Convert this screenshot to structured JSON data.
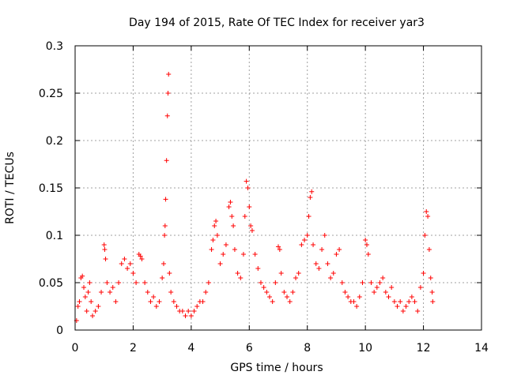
{
  "chart_data": {
    "type": "scatter",
    "title": "Day 194 of 2015, Rate Of TEC Index for receiver yar3",
    "xlabel": "GPS time / hours",
    "ylabel": "ROTI / TECUs",
    "xlim": [
      0,
      14
    ],
    "ylim": [
      0,
      0.3
    ],
    "x_ticks": [
      0,
      2,
      4,
      6,
      8,
      10,
      12,
      14
    ],
    "y_ticks": [
      0,
      0.05,
      0.1,
      0.15,
      0.2,
      0.25,
      0.3
    ],
    "x_tick_labels": [
      "0",
      "2",
      "4",
      "6",
      "8",
      "10",
      "12",
      "14"
    ],
    "y_tick_labels": [
      "0",
      "0.05",
      "0.1",
      "0.15",
      "0.2",
      "0.25",
      "0.3"
    ],
    "grid": true,
    "marker": "+",
    "series": [
      {
        "name": "ROTI",
        "color": "#ff0000",
        "points": [
          [
            0.05,
            0.01
          ],
          [
            0.1,
            0.025
          ],
          [
            0.15,
            0.03
          ],
          [
            0.2,
            0.055
          ],
          [
            0.25,
            0.057
          ],
          [
            0.3,
            0.045
          ],
          [
            0.35,
            0.035
          ],
          [
            0.4,
            0.02
          ],
          [
            0.45,
            0.04
          ],
          [
            0.5,
            0.05
          ],
          [
            0.55,
            0.03
          ],
          [
            0.6,
            0.015
          ],
          [
            0.7,
            0.02
          ],
          [
            0.8,
            0.025
          ],
          [
            0.9,
            0.04
          ],
          [
            1.0,
            0.09
          ],
          [
            1.02,
            0.085
          ],
          [
            1.05,
            0.075
          ],
          [
            1.1,
            0.05
          ],
          [
            1.2,
            0.04
          ],
          [
            1.3,
            0.045
          ],
          [
            1.4,
            0.03
          ],
          [
            1.5,
            0.05
          ],
          [
            1.6,
            0.07
          ],
          [
            1.7,
            0.075
          ],
          [
            1.8,
            0.065
          ],
          [
            1.9,
            0.07
          ],
          [
            2.0,
            0.06
          ],
          [
            2.1,
            0.05
          ],
          [
            2.2,
            0.08
          ],
          [
            2.25,
            0.078
          ],
          [
            2.3,
            0.075
          ],
          [
            2.4,
            0.05
          ],
          [
            2.5,
            0.04
          ],
          [
            2.6,
            0.03
          ],
          [
            2.7,
            0.035
          ],
          [
            2.8,
            0.025
          ],
          [
            2.9,
            0.03
          ],
          [
            3.0,
            0.055
          ],
          [
            3.05,
            0.07
          ],
          [
            3.08,
            0.1
          ],
          [
            3.1,
            0.11
          ],
          [
            3.12,
            0.138
          ],
          [
            3.15,
            0.179
          ],
          [
            3.18,
            0.226
          ],
          [
            3.2,
            0.25
          ],
          [
            3.22,
            0.27
          ],
          [
            3.25,
            0.06
          ],
          [
            3.3,
            0.04
          ],
          [
            3.4,
            0.03
          ],
          [
            3.5,
            0.025
          ],
          [
            3.6,
            0.02
          ],
          [
            3.7,
            0.02
          ],
          [
            3.8,
            0.015
          ],
          [
            3.9,
            0.02
          ],
          [
            4.0,
            0.015
          ],
          [
            4.1,
            0.02
          ],
          [
            4.2,
            0.025
          ],
          [
            4.3,
            0.03
          ],
          [
            4.4,
            0.03
          ],
          [
            4.5,
            0.04
          ],
          [
            4.6,
            0.05
          ],
          [
            4.7,
            0.085
          ],
          [
            4.75,
            0.095
          ],
          [
            4.8,
            0.11
          ],
          [
            4.85,
            0.115
          ],
          [
            4.9,
            0.1
          ],
          [
            5.0,
            0.07
          ],
          [
            5.1,
            0.08
          ],
          [
            5.2,
            0.09
          ],
          [
            5.3,
            0.13
          ],
          [
            5.35,
            0.135
          ],
          [
            5.4,
            0.12
          ],
          [
            5.45,
            0.11
          ],
          [
            5.5,
            0.085
          ],
          [
            5.6,
            0.06
          ],
          [
            5.7,
            0.055
          ],
          [
            5.8,
            0.08
          ],
          [
            5.85,
            0.12
          ],
          [
            5.9,
            0.157
          ],
          [
            5.95,
            0.15
          ],
          [
            6.0,
            0.13
          ],
          [
            6.05,
            0.11
          ],
          [
            6.1,
            0.105
          ],
          [
            6.2,
            0.08
          ],
          [
            6.3,
            0.065
          ],
          [
            6.4,
            0.05
          ],
          [
            6.5,
            0.045
          ],
          [
            6.6,
            0.04
          ],
          [
            6.7,
            0.035
          ],
          [
            6.8,
            0.03
          ],
          [
            6.9,
            0.05
          ],
          [
            7.0,
            0.088
          ],
          [
            7.05,
            0.085
          ],
          [
            7.1,
            0.06
          ],
          [
            7.2,
            0.04
          ],
          [
            7.3,
            0.035
          ],
          [
            7.4,
            0.03
          ],
          [
            7.5,
            0.04
          ],
          [
            7.6,
            0.055
          ],
          [
            7.7,
            0.06
          ],
          [
            7.8,
            0.09
          ],
          [
            7.9,
            0.095
          ],
          [
            8.0,
            0.1
          ],
          [
            8.05,
            0.12
          ],
          [
            8.1,
            0.14
          ],
          [
            8.15,
            0.146
          ],
          [
            8.2,
            0.09
          ],
          [
            8.3,
            0.07
          ],
          [
            8.4,
            0.065
          ],
          [
            8.5,
            0.085
          ],
          [
            8.6,
            0.1
          ],
          [
            8.7,
            0.07
          ],
          [
            8.8,
            0.055
          ],
          [
            8.9,
            0.06
          ],
          [
            9.0,
            0.08
          ],
          [
            9.1,
            0.085
          ],
          [
            9.2,
            0.05
          ],
          [
            9.3,
            0.04
          ],
          [
            9.4,
            0.035
          ],
          [
            9.5,
            0.03
          ],
          [
            9.6,
            0.03
          ],
          [
            9.7,
            0.025
          ],
          [
            9.8,
            0.035
          ],
          [
            9.9,
            0.05
          ],
          [
            10.0,
            0.095
          ],
          [
            10.05,
            0.09
          ],
          [
            10.1,
            0.08
          ],
          [
            10.2,
            0.05
          ],
          [
            10.3,
            0.04
          ],
          [
            10.4,
            0.045
          ],
          [
            10.5,
            0.05
          ],
          [
            10.6,
            0.055
          ],
          [
            10.7,
            0.04
          ],
          [
            10.8,
            0.035
          ],
          [
            10.9,
            0.045
          ],
          [
            11.0,
            0.03
          ],
          [
            11.1,
            0.025
          ],
          [
            11.2,
            0.03
          ],
          [
            11.3,
            0.02
          ],
          [
            11.4,
            0.025
          ],
          [
            11.5,
            0.03
          ],
          [
            11.6,
            0.035
          ],
          [
            11.7,
            0.03
          ],
          [
            11.8,
            0.02
          ],
          [
            11.9,
            0.045
          ],
          [
            12.0,
            0.06
          ],
          [
            12.05,
            0.1
          ],
          [
            12.1,
            0.125
          ],
          [
            12.15,
            0.12
          ],
          [
            12.2,
            0.085
          ],
          [
            12.25,
            0.055
          ],
          [
            12.3,
            0.04
          ],
          [
            12.32,
            0.03
          ]
        ]
      }
    ]
  }
}
